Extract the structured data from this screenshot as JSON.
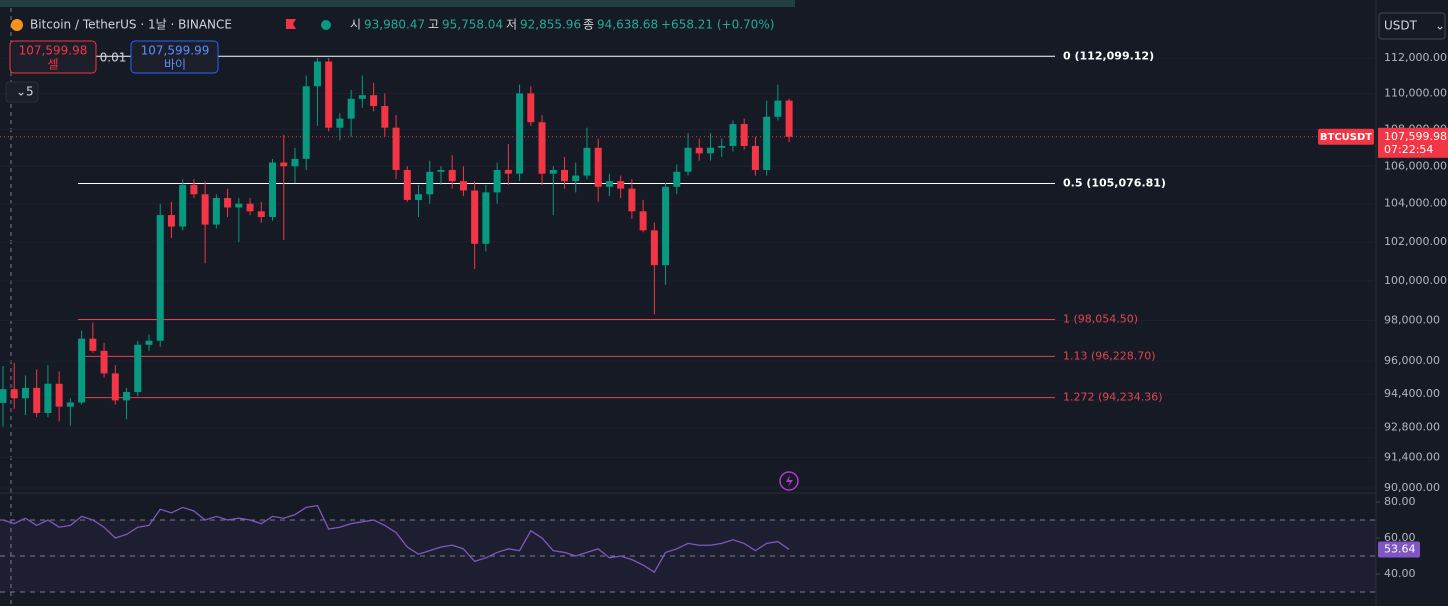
{
  "header": {
    "symbol": "Bitcoin / TetherUS · 1날 · BINANCE",
    "open_label": "시",
    "open": "93,980.47",
    "high_label": "고",
    "high": "95,758.04",
    "low_label": "저",
    "low": "92,855.96",
    "close_label": "종",
    "close": "94,638.68",
    "change": "+658.21 (+0.70%)",
    "sell_price": "107,599.98",
    "sell_label": "셀",
    "spread": "0.01",
    "buy_price": "107,599.99",
    "buy_label": "바이",
    "indicator_count": "5",
    "currency": "USDT",
    "price_tag_symbol": "BTCUSDT",
    "countdown": "07:22:54"
  },
  "chart_data": [
    {
      "type": "candlestick",
      "ylog": true,
      "ylim": [
        89770,
        113030
      ],
      "up_color": "#089981",
      "down_color": "#f23645",
      "yticks": [
        {
          "value": 112000,
          "label": "112,000.00"
        },
        {
          "value": 110000,
          "label": "110,000.00"
        },
        {
          "value": 108000,
          "label": "108,000.00"
        },
        {
          "value": 106000,
          "label": "106,000.00"
        },
        {
          "value": 104000,
          "label": "104,000.00"
        },
        {
          "value": 102000,
          "label": "102,000.00"
        },
        {
          "value": 100000,
          "label": "100,000.00"
        },
        {
          "value": 98000,
          "label": "98,000.00"
        },
        {
          "value": 96000,
          "label": "96,000.00"
        },
        {
          "value": 94400,
          "label": "94,400.00"
        },
        {
          "value": 92800,
          "label": "92,800.00"
        },
        {
          "value": 91400,
          "label": "91,400.00"
        },
        {
          "value": 90000,
          "label": "90,000.00"
        }
      ],
      "open": [
        93980.47,
        94639,
        94200,
        94700,
        93500,
        94900,
        93800,
        94000,
        97100,
        96500,
        95400,
        94100,
        94500,
        96800,
        97000,
        103400,
        102800,
        105000,
        104500,
        102900,
        104300,
        103800,
        104000,
        103600,
        103300,
        106200,
        106000,
        106400,
        110400,
        111800,
        108100,
        108600,
        109700,
        109900,
        109300,
        108100,
        105800,
        104200,
        104500,
        105700,
        105800,
        105200,
        104700,
        101900,
        104600,
        105800,
        105600,
        110000,
        108400,
        105600,
        105800,
        105200,
        105500,
        107000,
        104900,
        105200,
        104800,
        103600,
        102600,
        100800,
        104900,
        105700,
        107000,
        106700,
        107000,
        107100,
        108300,
        107100,
        105800,
        108700,
        109600
      ],
      "high": [
        95758.04,
        95900,
        95300,
        95600,
        95800,
        95500,
        94200,
        97500,
        97900,
        96900,
        95800,
        94700,
        97000,
        97300,
        104000,
        104100,
        105300,
        105300,
        105200,
        104500,
        104800,
        104300,
        104300,
        104100,
        106400,
        107700,
        107000,
        111000,
        112000,
        112000,
        108900,
        110200,
        111000,
        110600,
        110000,
        108800,
        106000,
        105000,
        106300,
        106000,
        106600,
        106000,
        105200,
        105000,
        106200,
        107200,
        110500,
        110400,
        108800,
        106000,
        106500,
        106200,
        108100,
        107500,
        105600,
        105500,
        105300,
        104200,
        103000,
        105100,
        106100,
        107800,
        107500,
        107800,
        107500,
        108500,
        108600,
        107600,
        109600,
        110500,
        109700
      ],
      "low": [
        92855.96,
        93700,
        93400,
        93300,
        93300,
        93100,
        92900,
        93900,
        96400,
        95200,
        93900,
        93200,
        94300,
        96500,
        96700,
        102200,
        102600,
        104300,
        100900,
        102700,
        103300,
        102000,
        103400,
        103000,
        103100,
        102100,
        105100,
        105800,
        108200,
        107900,
        107400,
        107600,
        109200,
        109000,
        107600,
        105300,
        104100,
        103300,
        104000,
        105000,
        104800,
        104400,
        100600,
        101500,
        104000,
        105000,
        105200,
        108200,
        105000,
        103400,
        104800,
        104600,
        105300,
        104100,
        104400,
        104300,
        103200,
        102500,
        98300,
        99800,
        104500,
        105500,
        106300,
        106300,
        106500,
        106800,
        106900,
        105500,
        105500,
        108500,
        107300
      ],
      "close": [
        94638.68,
        94200,
        94700,
        93500,
        94900,
        93800,
        94000,
        97100,
        96500,
        95400,
        94100,
        94500,
        96800,
        97000,
        103400,
        102800,
        105000,
        104500,
        102900,
        104300,
        103800,
        104000,
        103600,
        103300,
        106200,
        106000,
        106400,
        110400,
        111800,
        108100,
        108600,
        109700,
        109900,
        109300,
        108100,
        105800,
        104200,
        104500,
        105700,
        105800,
        105200,
        104700,
        101900,
        104600,
        105800,
        105600,
        110000,
        108400,
        105600,
        105800,
        105200,
        105500,
        107000,
        104900,
        105200,
        104800,
        103600,
        102600,
        100800,
        104900,
        105700,
        107000,
        106700,
        107000,
        107100,
        108300,
        107100,
        105800,
        108700,
        109600,
        107599.98
      ],
      "fib_levels": [
        {
          "value": 112099.12,
          "label": "0 (112,099.12)",
          "color": "#ffffff"
        },
        {
          "value": 105076.81,
          "label": "0.5 (105,076.81)",
          "color": "#ffffff"
        },
        {
          "value": 98054.5,
          "label": "1 (98,054.50)",
          "color": "#e0454f"
        },
        {
          "value": 96228.7,
          "label": "1.13 (96,228.70)",
          "color": "#e0454f"
        },
        {
          "value": 94234.36,
          "label": "1.272 (94,234.36)",
          "color": "#e0454f"
        }
      ],
      "last_price": {
        "value": 107599.98,
        "label": "107,599.98"
      }
    },
    {
      "type": "line",
      "color": "#7e57c2",
      "ylim": [
        27.8,
        85
      ],
      "yticks": [
        {
          "value": 80,
          "label": "80.00"
        },
        {
          "value": 60,
          "label": "60.00"
        },
        {
          "value": 40,
          "label": "40.00"
        }
      ],
      "band_lines": [
        70,
        50,
        30
      ],
      "values": [
        70,
        68,
        71,
        67,
        70,
        66,
        67,
        72,
        70,
        66,
        60,
        62,
        66,
        67,
        76,
        74,
        77,
        75,
        70,
        72,
        70,
        71,
        70,
        68,
        72,
        71,
        73,
        77,
        78,
        65,
        66,
        68,
        69,
        70,
        67,
        63,
        55,
        51,
        53,
        55,
        56,
        54,
        47,
        49,
        52,
        54,
        53,
        64,
        60,
        53,
        52,
        50,
        52,
        54,
        49,
        50,
        48,
        45,
        41,
        52,
        54,
        57,
        56,
        56,
        57,
        59,
        57,
        53,
        57,
        58,
        53.64
      ]
    }
  ]
}
